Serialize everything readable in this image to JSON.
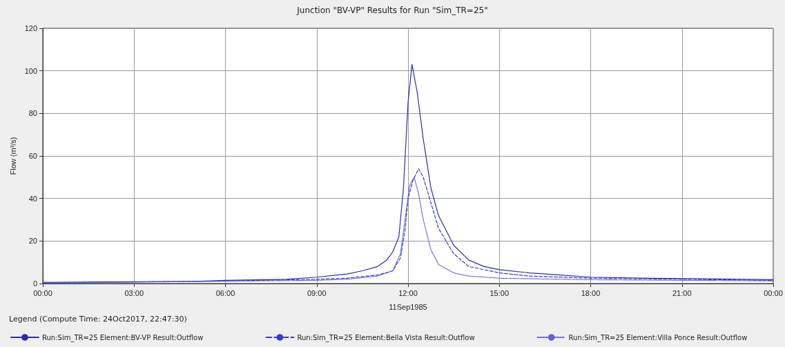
{
  "chart_data": {
    "type": "line",
    "title": "Junction \"BV-VP\" Results for Run \"Sim_TR=25\"",
    "xlabel": "11Sep1985",
    "ylabel": "Flow (m³/s)",
    "legend_title": "Legend (Compute Time: 24Oct2017, 22:47:30)",
    "xlim": [
      0,
      24
    ],
    "xticks": [
      {
        "value": 0,
        "label": "00:00"
      },
      {
        "value": 3,
        "label": "03:00"
      },
      {
        "value": 6,
        "label": "06:00"
      },
      {
        "value": 9,
        "label": "09:00"
      },
      {
        "value": 12,
        "label": "12:00"
      },
      {
        "value": 15,
        "label": "15:00"
      },
      {
        "value": 18,
        "label": "18:00"
      },
      {
        "value": 21,
        "label": "21:00"
      },
      {
        "value": 24,
        "label": "00:00"
      }
    ],
    "ylim": [
      0,
      120
    ],
    "yticks": [
      0,
      20,
      40,
      60,
      80,
      100,
      120
    ],
    "grid": true,
    "legend": "bottom",
    "marker": "none",
    "series": [
      {
        "name": "Run:Sim_TR=25 Element:BV-VP Result:Outflow",
        "color": "#2a2ab0",
        "line_style": "solid",
        "x": [
          0,
          2,
          5,
          6,
          8,
          9,
          10,
          10.5,
          11,
          11.3,
          11.5,
          11.7,
          11.85,
          12,
          12.13,
          12.3,
          12.5,
          12.75,
          13,
          13.5,
          14,
          14.5,
          15,
          16,
          17,
          18,
          20,
          24
        ],
        "values": [
          0.5,
          0.8,
          1,
          1.5,
          2,
          3,
          4.5,
          6,
          8,
          11,
          15,
          22,
          45,
          85,
          103,
          90,
          68,
          45,
          32,
          18,
          11,
          8,
          6.5,
          5,
          4,
          3,
          2.5,
          1.8
        ]
      },
      {
        "name": "Run:Sim_TR=25 Element:Bella Vista Result:Outflow",
        "color": "#3b3bd0",
        "line_style": "dashed",
        "x": [
          0,
          6,
          9,
          10,
          11,
          11.5,
          11.75,
          11.9,
          12,
          12.15,
          12.35,
          12.5,
          12.75,
          13,
          13.5,
          14,
          15,
          16,
          18,
          24
        ],
        "values": [
          0.3,
          1.2,
          2,
          2.5,
          4,
          6,
          12,
          25,
          40,
          48,
          54,
          50,
          38,
          26,
          14,
          8,
          5,
          3.5,
          2.5,
          1.5
        ]
      },
      {
        "name": "Run:Sim_TR=25 Element:Villa Ponce Result:Outflow",
        "color": "#6060e0",
        "line_style": "dotted",
        "x": [
          0,
          9,
          10,
          11,
          11.5,
          11.75,
          11.9,
          12.05,
          12.2,
          12.35,
          12.5,
          12.75,
          13,
          13.5,
          14,
          15,
          18,
          24
        ],
        "values": [
          0.2,
          1.5,
          2,
          3.5,
          6,
          14,
          30,
          46,
          50,
          42,
          30,
          16,
          9,
          5,
          3.5,
          2.5,
          1.8,
          1.2
        ]
      }
    ]
  }
}
